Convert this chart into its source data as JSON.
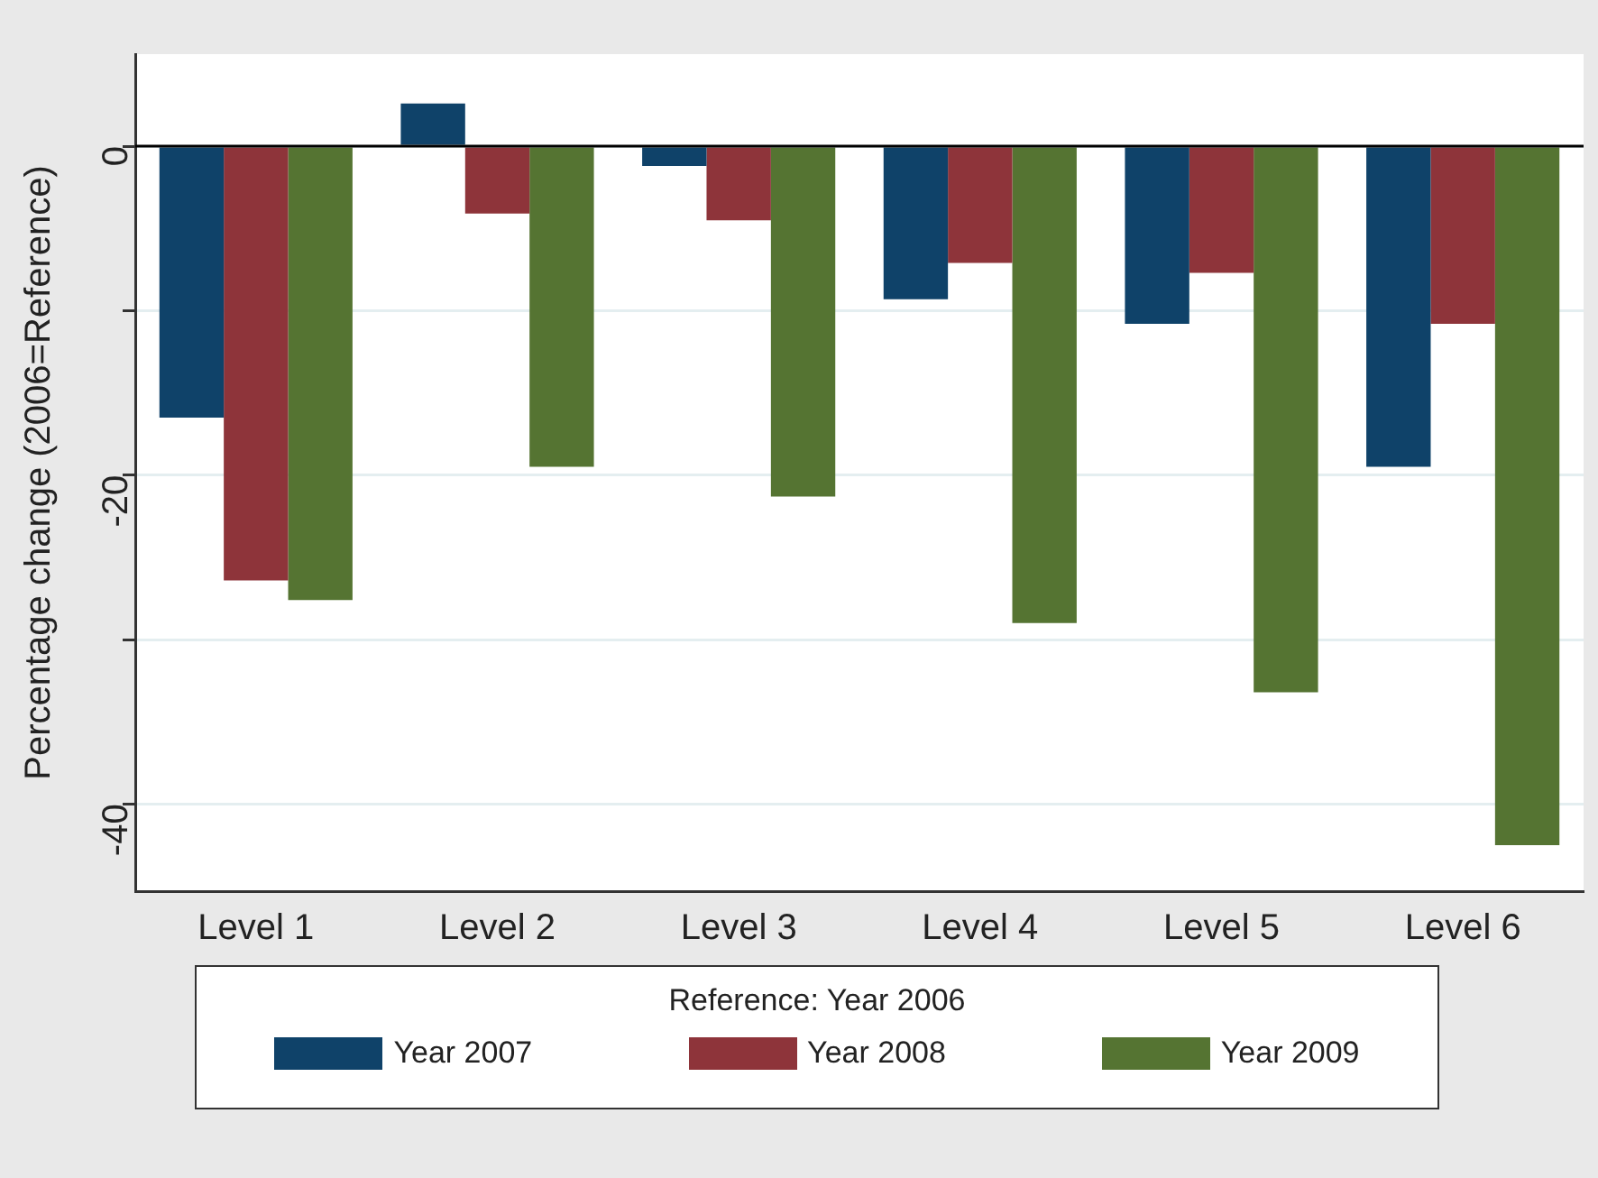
{
  "chart_data": {
    "type": "bar",
    "ylabel": "Percentage change (2006=Reference)",
    "legend_title": "Reference: Year 2006",
    "categories": [
      "Level 1",
      "Level 2",
      "Level 3",
      "Level 4",
      "Level 5",
      "Level 6"
    ],
    "series": [
      {
        "name": "Year 2007",
        "color": "#0f4269",
        "values": [
          -16.5,
          2.6,
          -1.2,
          -9.3,
          -10.8,
          -19.5
        ]
      },
      {
        "name": "Year 2008",
        "color": "#8e343a",
        "values": [
          -26.4,
          -4.1,
          -4.5,
          -7.1,
          -7.7,
          -10.8
        ]
      },
      {
        "name": "Year 2009",
        "color": "#557432",
        "values": [
          -27.6,
          -19.5,
          -21.3,
          -29.0,
          -33.2,
          -42.5
        ]
      }
    ],
    "ylim": [
      -45.3,
      5.6
    ],
    "yticks": [
      -40,
      {
        "value": -30,
        "label": null
      },
      -20,
      {
        "value": -10,
        "label": null
      },
      0
    ],
    "ref_lines": [
      {
        "axis": "y",
        "value": 0,
        "color": "#000000"
      }
    ],
    "grid": "y",
    "legend": "bottom"
  }
}
